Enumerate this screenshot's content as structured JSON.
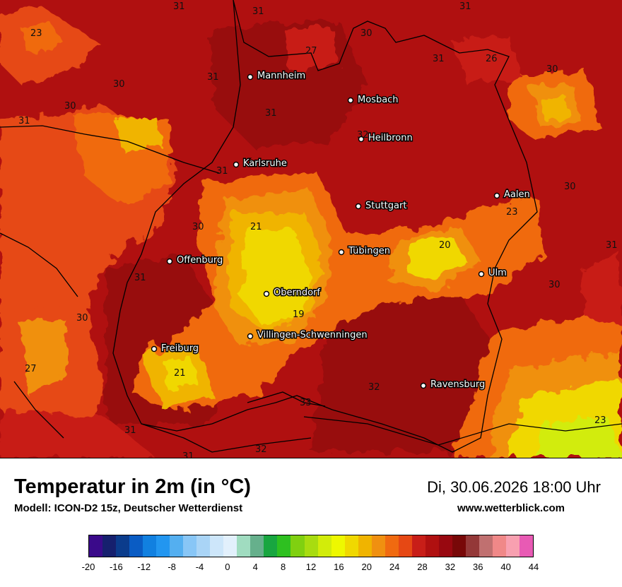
{
  "header": {
    "title": "Temperatur in 2m (in °C)",
    "model": "Modell: ICON-D2 15z, Deutscher Wetterdienst",
    "datetime": "Di, 30.06.2026 18:00 Uhr",
    "website": "www.wetterblick.com"
  },
  "cities": [
    {
      "name": "Mannheim"
    },
    {
      "name": "Mosbach"
    },
    {
      "name": "Heilbronn"
    },
    {
      "name": "Karlsruhe"
    },
    {
      "name": "Aalen"
    },
    {
      "name": "Stuttgart"
    },
    {
      "name": "Tübingen"
    },
    {
      "name": "Offenburg"
    },
    {
      "name": "Ulm"
    },
    {
      "name": "Oberndorf"
    },
    {
      "name": "Villingen-Schwenningen"
    },
    {
      "name": "Freiburg"
    },
    {
      "name": "Ravensburg"
    }
  ],
  "values": [
    "31",
    "31",
    "31",
    "23",
    "27",
    "30",
    "31",
    "26",
    "30",
    "31",
    "30",
    "31",
    "31",
    "32",
    "31",
    "30",
    "30",
    "23",
    "30",
    "21",
    "20",
    "31",
    "31",
    "30",
    "30",
    "19",
    "27",
    "21",
    "32",
    "33",
    "23",
    "31",
    "32",
    "31"
  ],
  "legend": {
    "colors": [
      "#3a0a8a",
      "#16206e",
      "#0b3c8c",
      "#0a5cc4",
      "#1180e0",
      "#2296f0",
      "#54aff0",
      "#88c6f6",
      "#a9d4f6",
      "#cde6fa",
      "#e2f0fc",
      "#a0dcc0",
      "#66b08c",
      "#18a640",
      "#2ec020",
      "#80d010",
      "#a8dc10",
      "#d2ec0a",
      "#eef800",
      "#f0d800",
      "#f0b400",
      "#f09010",
      "#f06a10",
      "#e64814",
      "#c81e18",
      "#b01010",
      "#980810",
      "#780808",
      "#943838",
      "#c07070",
      "#f08888",
      "#f8a0b0",
      "#e85ab4"
    ],
    "ticks": [
      "-20",
      "-16",
      "-12",
      "-8",
      "-4",
      "0",
      "4",
      "8",
      "12",
      "16",
      "20",
      "24",
      "28",
      "32",
      "36",
      "40",
      "44"
    ]
  }
}
